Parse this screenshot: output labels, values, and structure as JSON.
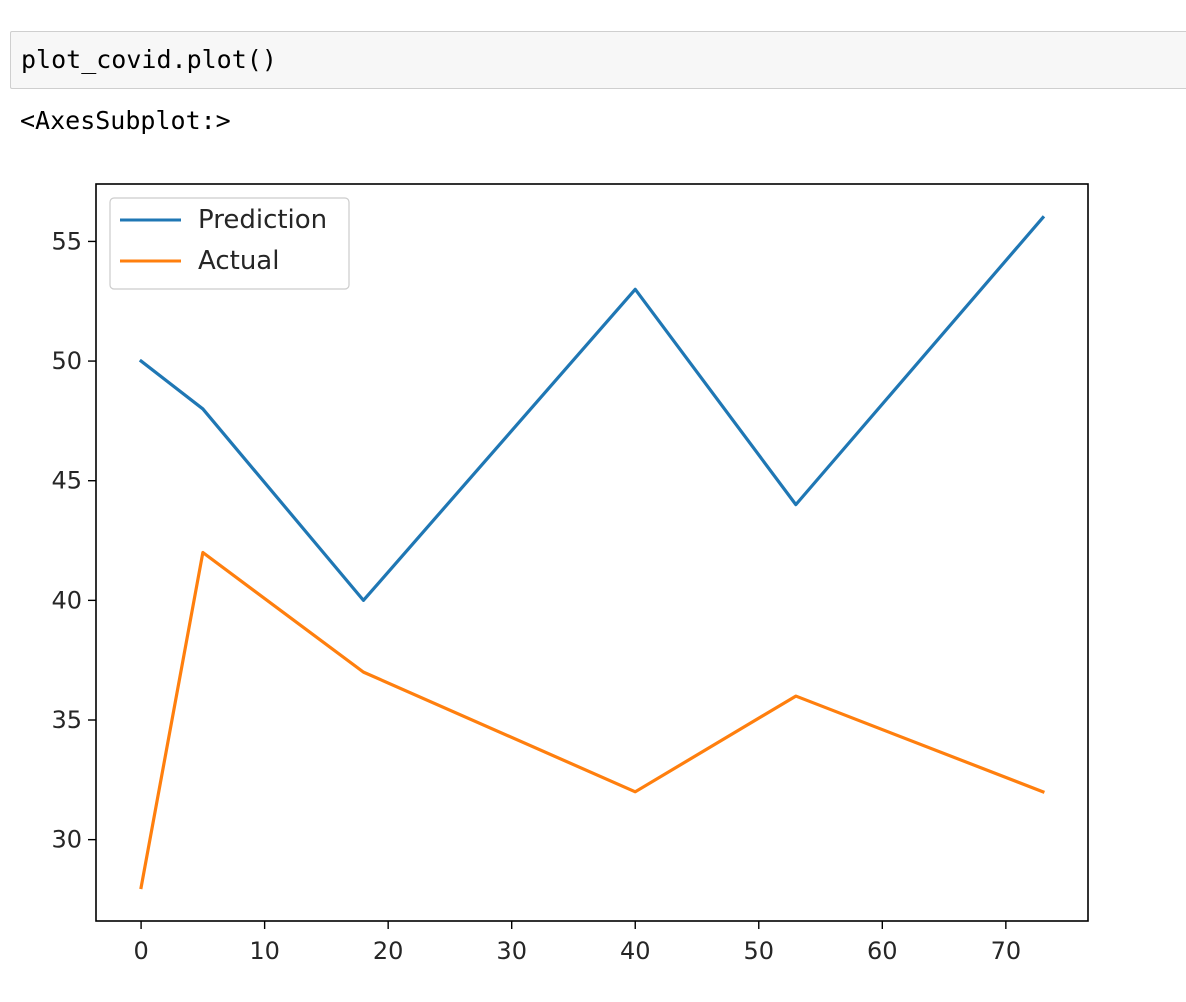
{
  "cell": {
    "input_code": "plot_covid.plot()",
    "output_repr": "<AxesSubplot:>"
  },
  "chart_data": {
    "type": "line",
    "title": "",
    "xlabel": "",
    "ylabel": "",
    "x": [
      0,
      5,
      18,
      40,
      53,
      73
    ],
    "series": [
      {
        "name": "Prediction",
        "values": [
          50,
          48,
          40,
          53,
          44,
          56
        ],
        "color": "#1f77b4"
      },
      {
        "name": "Actual",
        "values": [
          28,
          42,
          37,
          32,
          36,
          32
        ],
        "color": "#ff7f0e"
      }
    ],
    "xlim": [
      -3.65,
      76.65
    ],
    "ylim": [
      26.6,
      57.4
    ],
    "xticks": [
      0,
      10,
      20,
      30,
      40,
      50,
      60,
      70
    ],
    "yticks": [
      30,
      35,
      40,
      45,
      50,
      55
    ],
    "grid": false,
    "legend_position": "upper left"
  }
}
